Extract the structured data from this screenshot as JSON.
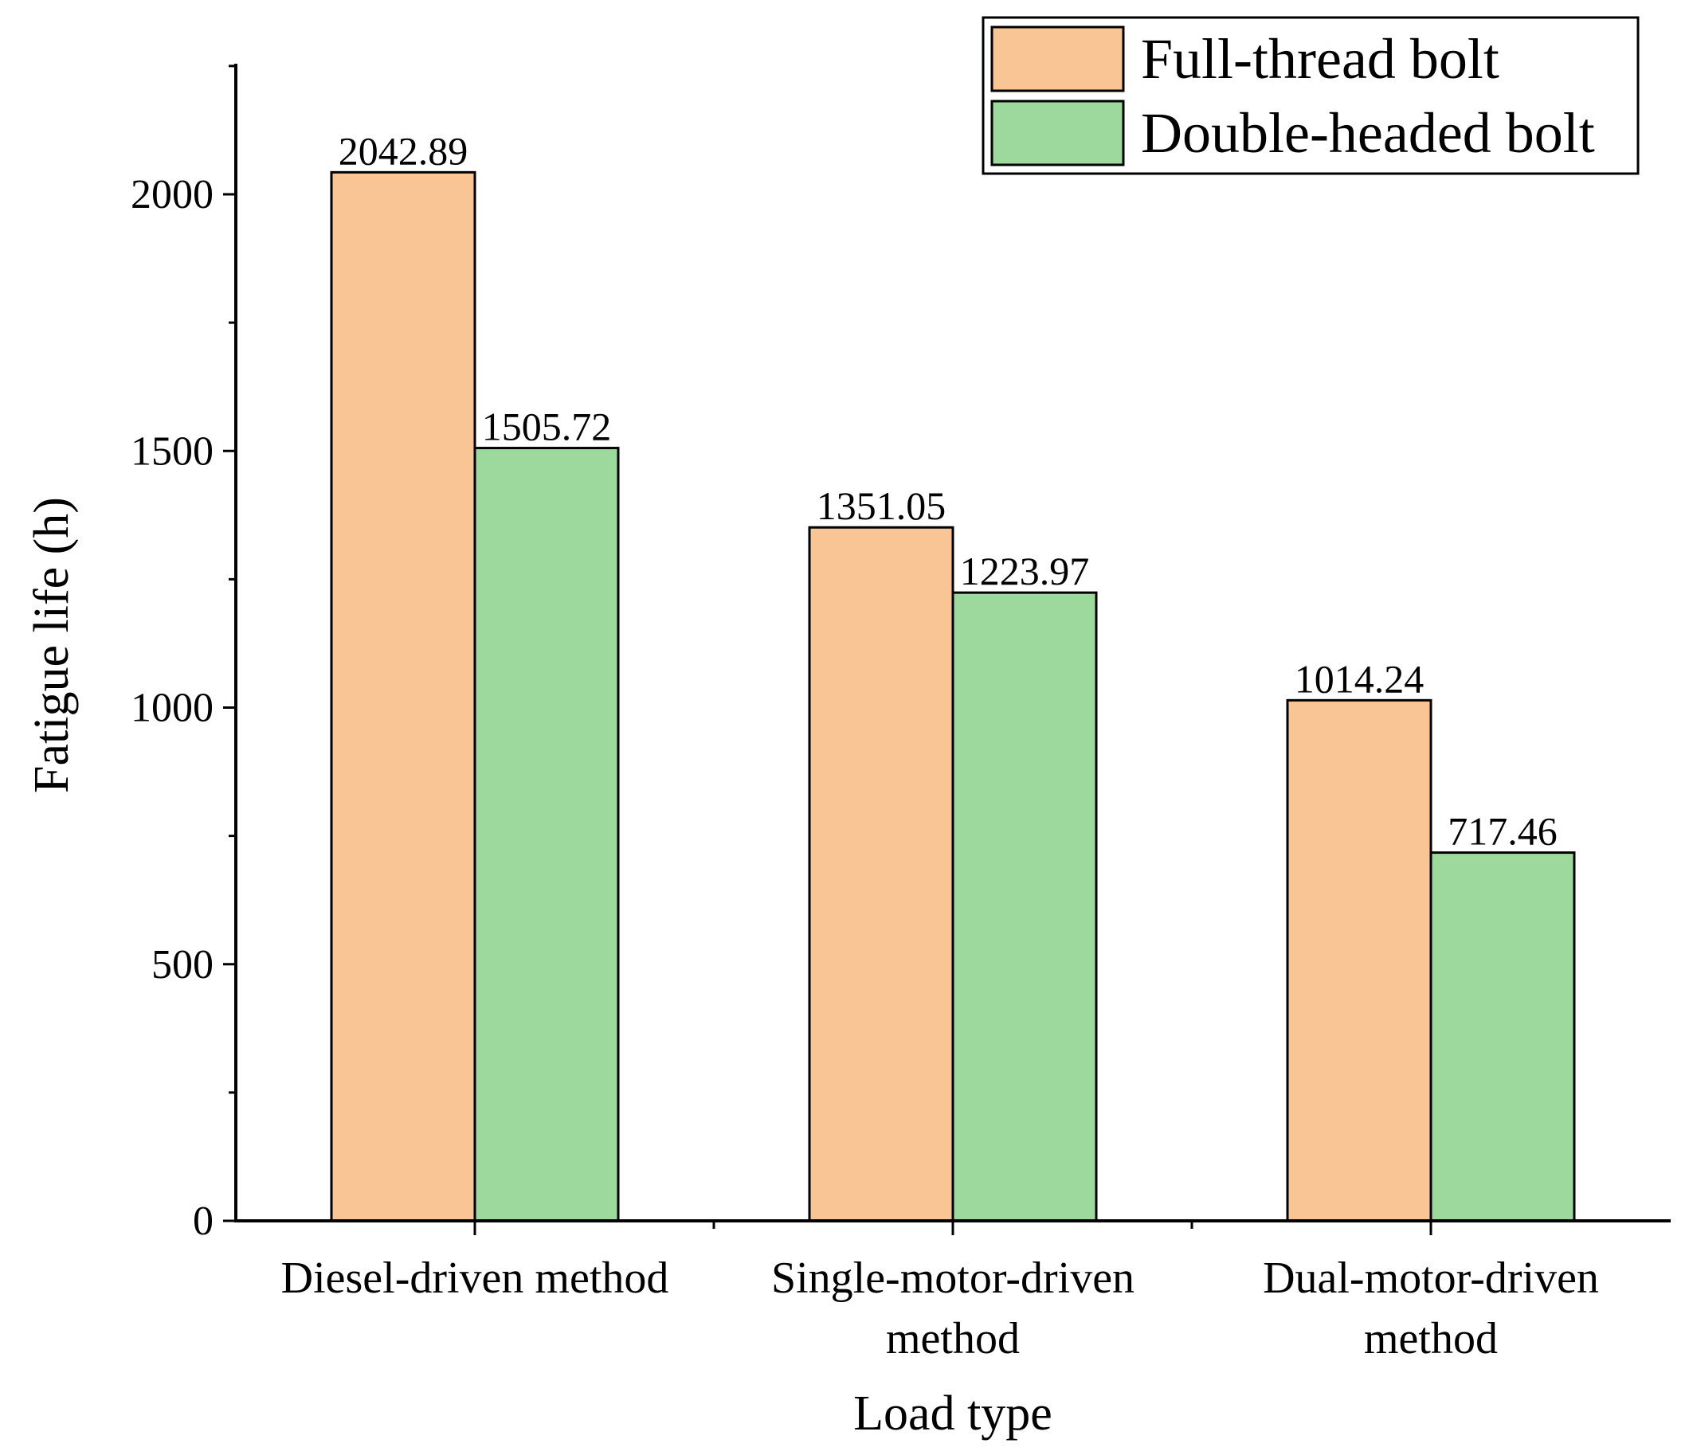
{
  "chart_data": {
    "type": "bar",
    "title": "",
    "xlabel": "Load type",
    "ylabel": "Fatigue life (h)",
    "ylim": [
      0,
      2250
    ],
    "yticks": [
      0,
      500,
      1000,
      1500,
      2000
    ],
    "grid": false,
    "legend_position": "top-right",
    "categories": [
      [
        "Diesel-driven method"
      ],
      [
        "Single-motor-driven",
        "method"
      ],
      [
        "Dual-motor-driven",
        "method"
      ]
    ],
    "series": [
      {
        "name": "Full-thread bolt",
        "color": "#f9c595",
        "values": [
          2042.89,
          1351.05,
          1014.24
        ],
        "labels": [
          "2042.89",
          "1351.05",
          "1014.24"
        ]
      },
      {
        "name": "Double-headed bolt",
        "color": "#9dd89d",
        "values": [
          1505.72,
          1223.97,
          717.46
        ],
        "labels": [
          "1505.72",
          "1223.97",
          "717.46"
        ]
      }
    ]
  }
}
